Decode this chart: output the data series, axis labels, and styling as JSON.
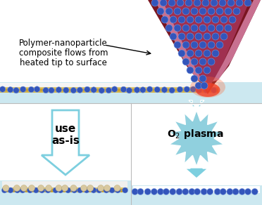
{
  "bg_color": "#ffffff",
  "top_panel_bg": "#ffffff",
  "surface_bg_top": "#cce8f0",
  "label_text_lines": [
    "Polymer-nanoparticle",
    "composite flows from",
    "heated tip to surface"
  ],
  "label_fontsize": 8.5,
  "arrow_color": "#7dcfdf",
  "arrow_edge": "#a0dde8",
  "tip_dark": "#7a1520",
  "tip_mid": "#a03050",
  "tip_light": "#c87090",
  "tip_glow": "#ee3322",
  "np_face": "#3355bb",
  "np_edge": "#7799dd",
  "polymer_gold": "#c8a030",
  "polymer_light": "#e0c870",
  "polymer_thin": "#d4b448",
  "surface_blue": "#b8dce8",
  "surface_light": "#d4eef5",
  "burst_color": "#90d0de",
  "burst_edge": "#ffffff",
  "divider_color": "#bbbbbb",
  "bottom_panel_bg": "#ffffff"
}
